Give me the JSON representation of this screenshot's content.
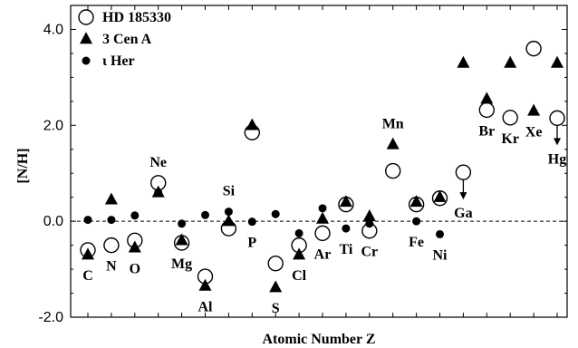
{
  "chart_data": {
    "type": "scatter",
    "title": "",
    "xlabel": "Atomic Number Z",
    "ylabel": "[N/H]",
    "ylim": [
      -2.0,
      4.5
    ],
    "yticks": [
      -2.0,
      0.0,
      2.0,
      4.0
    ],
    "ytick_labels": [
      "-2.0",
      "0.0",
      "2.0",
      "4.0"
    ],
    "reference_line": 0.0,
    "grid": false,
    "legend_position": "top-left",
    "legend": [
      {
        "marker": "open-circle",
        "label": "HD 185330"
      },
      {
        "marker": "filled-triangle",
        "label": "3 Cen A"
      },
      {
        "marker": "small-dot",
        "label": "ι  Her"
      }
    ],
    "elements": [
      "C",
      "N",
      "O",
      "Ne",
      "Mg",
      "Al",
      "Si",
      "P",
      "S",
      "Cl",
      "Ar",
      "Ti",
      "Cr",
      "Mn",
      "Fe",
      "Ni",
      "Ga",
      "Br",
      "Kr",
      "Xe",
      "Hg"
    ],
    "element_label_positions": [
      "below",
      "below",
      "below",
      "above",
      "below",
      "below",
      "above",
      "below",
      "below",
      "below",
      "below",
      "below",
      "below",
      "above",
      "below",
      "below",
      "below",
      "below",
      "below",
      "below",
      "below"
    ],
    "series": [
      {
        "name": "HD 185330",
        "marker": "open-circle",
        "values": [
          -0.6,
          -0.5,
          -0.4,
          0.8,
          -0.45,
          -1.15,
          -0.15,
          1.85,
          -0.88,
          -0.5,
          -0.25,
          0.35,
          -0.2,
          1.05,
          0.35,
          0.48,
          1.02,
          2.32,
          2.16,
          3.6,
          2.15
        ],
        "upper_limit": [
          false,
          false,
          false,
          false,
          false,
          false,
          false,
          false,
          false,
          false,
          false,
          false,
          false,
          false,
          false,
          false,
          true,
          false,
          false,
          false,
          true
        ]
      },
      {
        "name": "3 Cen A",
        "marker": "filled-triangle",
        "values": [
          -0.7,
          0.45,
          -0.55,
          0.6,
          -0.4,
          -1.35,
          0.0,
          2.0,
          -1.38,
          -0.7,
          0.05,
          0.4,
          0.1,
          1.6,
          0.4,
          0.5,
          3.3,
          2.55,
          3.3,
          2.3,
          3.3
        ]
      },
      {
        "name": "ι Her",
        "marker": "small-dot",
        "values": [
          0.03,
          0.03,
          0.12,
          0.6,
          -0.05,
          0.13,
          0.2,
          -0.01,
          0.15,
          -0.25,
          0.27,
          -0.15,
          -0.05,
          null,
          0.0,
          -0.27,
          null,
          null,
          null,
          null,
          null
        ]
      }
    ]
  }
}
